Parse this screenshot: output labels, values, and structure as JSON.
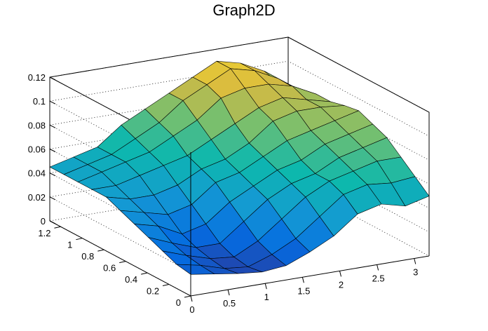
{
  "chart_data": {
    "type": "surface",
    "title": "Graph2D",
    "xlabel": "",
    "ylabel": "",
    "zlabel": "",
    "xlim": [
      0,
      3.2
    ],
    "ylim": [
      0,
      1.3
    ],
    "zlim": [
      0,
      0.12
    ],
    "x_ticks": [
      "0",
      "0.5",
      "1",
      "1.5",
      "2",
      "2.5",
      "3"
    ],
    "y_ticks": [
      "0",
      "0.2",
      "0.4",
      "0.6",
      "0.8",
      "1",
      "1.2"
    ],
    "z_ticks": [
      "0",
      "0.02",
      "0.04",
      "0.06",
      "0.08",
      "0.1",
      "0.12"
    ],
    "grid": true,
    "colormap": "parula",
    "x": [
      0,
      0.32,
      0.64,
      0.96,
      1.28,
      1.6,
      1.92,
      2.24,
      2.56,
      2.88,
      3.2
    ],
    "y": [
      0,
      0.13,
      0.26,
      0.39,
      0.52,
      0.65,
      0.78,
      0.91,
      1.04,
      1.17,
      1.3
    ],
    "z": [
      [
        0.018,
        0.015,
        0.012,
        0.01,
        0.012,
        0.02,
        0.03,
        0.045,
        0.05,
        0.045,
        0.05
      ],
      [
        0.02,
        0.016,
        0.01,
        0.008,
        0.015,
        0.025,
        0.04,
        0.055,
        0.06,
        0.058,
        0.06
      ],
      [
        0.025,
        0.018,
        0.012,
        0.01,
        0.02,
        0.035,
        0.05,
        0.06,
        0.065,
        0.07,
        0.07
      ],
      [
        0.03,
        0.022,
        0.015,
        0.015,
        0.03,
        0.045,
        0.055,
        0.06,
        0.07,
        0.075,
        0.08
      ],
      [
        0.035,
        0.03,
        0.02,
        0.025,
        0.04,
        0.05,
        0.06,
        0.065,
        0.075,
        0.08,
        0.085
      ],
      [
        0.04,
        0.035,
        0.03,
        0.035,
        0.05,
        0.055,
        0.065,
        0.075,
        0.08,
        0.085,
        0.09
      ],
      [
        0.045,
        0.04,
        0.04,
        0.045,
        0.055,
        0.06,
        0.07,
        0.085,
        0.09,
        0.09,
        0.088
      ],
      [
        0.045,
        0.045,
        0.05,
        0.055,
        0.06,
        0.07,
        0.08,
        0.09,
        0.095,
        0.09,
        0.085
      ],
      [
        0.045,
        0.05,
        0.055,
        0.06,
        0.07,
        0.08,
        0.095,
        0.1,
        0.1,
        0.095,
        0.085
      ],
      [
        0.045,
        0.05,
        0.055,
        0.065,
        0.075,
        0.09,
        0.1,
        0.11,
        0.105,
        0.095,
        0.08
      ],
      [
        0.045,
        0.05,
        0.055,
        0.07,
        0.08,
        0.09,
        0.1,
        0.11,
        0.105,
        0.095,
        0.075
      ]
    ]
  }
}
